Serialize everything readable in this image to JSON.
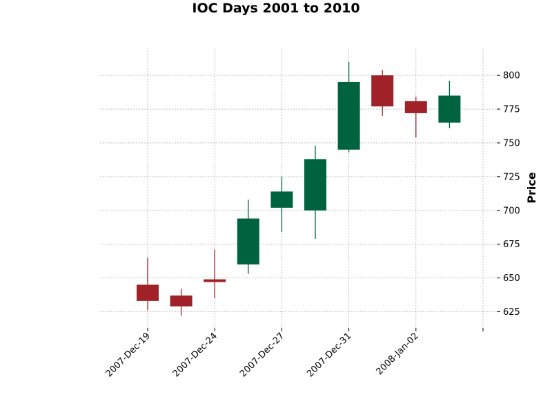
{
  "chart_data": {
    "type": "candlestick",
    "title": "IOC Days 2001 to 2010",
    "xlabel": "",
    "ylabel": "Price",
    "ylim": [
      613,
      820
    ],
    "y_ticks": [
      625,
      650,
      675,
      700,
      725,
      750,
      775,
      800
    ],
    "grid": true,
    "y_axis_side": "right",
    "x_tick_labels": [
      {
        "label": "2007-Dec-19",
        "index": 0
      },
      {
        "label": "2007-Dec-24",
        "index": 2
      },
      {
        "label": "2007-Dec-27",
        "index": 4
      },
      {
        "label": "2007-Dec-31",
        "index": 6
      },
      {
        "label": "2008-Jan-02",
        "index": 8
      },
      {
        "label": "",
        "index": 10
      }
    ],
    "up_color": "#006340",
    "down_color": "#a02128",
    "candles": [
      {
        "open": 645,
        "high": 665,
        "low": 626,
        "close": 633
      },
      {
        "open": 637,
        "high": 642,
        "low": 622,
        "close": 629
      },
      {
        "open": 649,
        "high": 671,
        "low": 635,
        "close": 647
      },
      {
        "open": 660,
        "high": 708,
        "low": 653,
        "close": 694
      },
      {
        "open": 702,
        "high": 725,
        "low": 684,
        "close": 714
      },
      {
        "open": 700,
        "high": 748,
        "low": 679,
        "close": 738
      },
      {
        "open": 745,
        "high": 810,
        "low": 743,
        "close": 795
      },
      {
        "open": 800,
        "high": 804,
        "low": 770,
        "close": 777
      },
      {
        "open": 781,
        "high": 784,
        "low": 754,
        "close": 772
      },
      {
        "open": 765,
        "high": 796,
        "low": 761,
        "close": 785
      }
    ]
  }
}
